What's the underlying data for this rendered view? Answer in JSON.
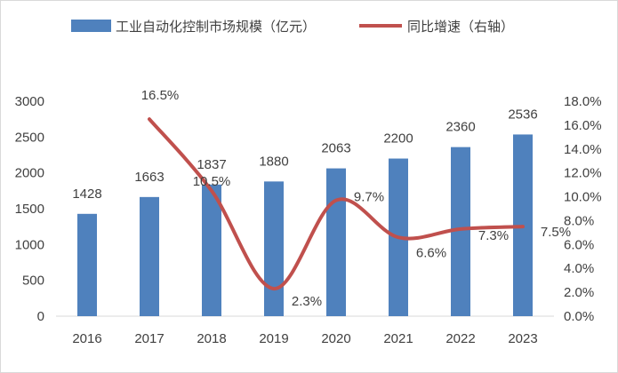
{
  "chart_data": {
    "type": "bar+line",
    "categories": [
      "2016",
      "2017",
      "2018",
      "2019",
      "2020",
      "2021",
      "2022",
      "2023"
    ],
    "series": [
      {
        "name": "工业自动化控制市场规模（亿元）",
        "type": "bar",
        "axis": "left",
        "values": [
          1428,
          1663,
          1837,
          1880,
          2063,
          2200,
          2360,
          2536
        ],
        "labels": [
          "1428",
          "1663",
          "1837",
          "1880",
          "2063",
          "2200",
          "2360",
          "2536"
        ]
      },
      {
        "name": "同比增速（右轴）",
        "type": "line",
        "axis": "right",
        "values": [
          null,
          16.5,
          10.5,
          2.3,
          9.7,
          6.6,
          7.3,
          7.5
        ],
        "labels": [
          "",
          "16.5%",
          "10.5%",
          "2.3%",
          "9.7%",
          "6.6%",
          "7.3%",
          "7.5%"
        ]
      }
    ],
    "yleft": {
      "range": [
        0,
        3000
      ],
      "ticks": [
        "0",
        "500",
        "1000",
        "1500",
        "2000",
        "2500",
        "3000"
      ]
    },
    "yright": {
      "range": [
        0,
        18
      ],
      "ticks": [
        "0.0%",
        "2.0%",
        "4.0%",
        "6.0%",
        "8.0%",
        "10.0%",
        "12.0%",
        "14.0%",
        "16.0%",
        "18.0%"
      ]
    },
    "legend": "top",
    "grid": false,
    "colors": {
      "bar": "#4f81bd",
      "line": "#c0504d"
    }
  }
}
